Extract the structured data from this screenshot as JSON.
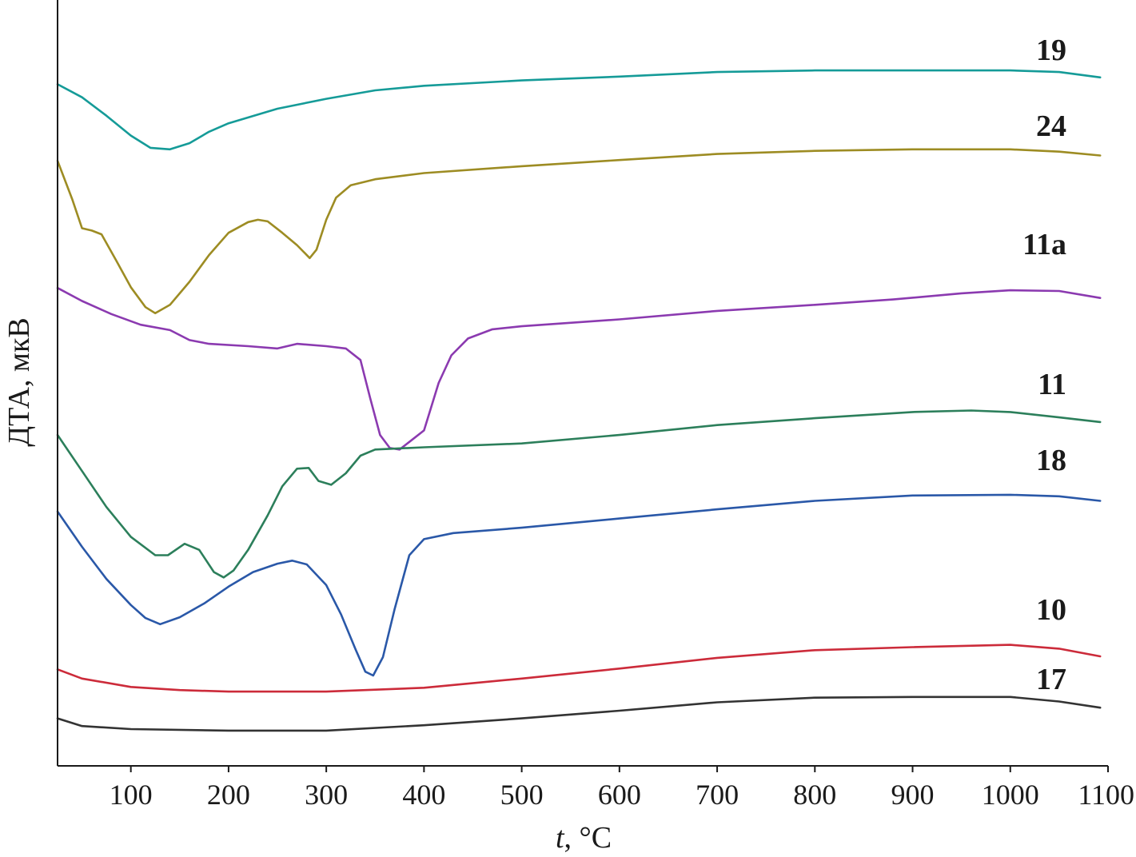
{
  "chart_data": {
    "type": "line",
    "title": "",
    "xlabel_italic": "t",
    "xlabel_rest": ", °C",
    "ylabel": "ДТА, мкВ",
    "xlim": [
      25,
      1100
    ],
    "ylim": [
      0,
      100
    ],
    "x_ticks": [
      100,
      200,
      300,
      400,
      500,
      600,
      700,
      800,
      900,
      1000,
      1100
    ],
    "y_ticks_shown": false,
    "grid": false,
    "legend": "labels placed at right end of each curve",
    "series": [
      {
        "name": "19",
        "color": "#159b98",
        "points": [
          [
            25,
            89
          ],
          [
            50,
            87.3
          ],
          [
            75,
            84.9
          ],
          [
            100,
            82.3
          ],
          [
            120,
            80.7
          ],
          [
            140,
            80.5
          ],
          [
            160,
            81.3
          ],
          [
            180,
            82.8
          ],
          [
            200,
            83.9
          ],
          [
            250,
            85.8
          ],
          [
            300,
            87.1
          ],
          [
            350,
            88.2
          ],
          [
            400,
            88.8
          ],
          [
            500,
            89.5
          ],
          [
            600,
            90
          ],
          [
            700,
            90.6
          ],
          [
            800,
            90.8
          ],
          [
            900,
            90.8
          ],
          [
            1000,
            90.8
          ],
          [
            1050,
            90.6
          ],
          [
            1092,
            89.9
          ]
        ]
      },
      {
        "name": "24",
        "color": "#9d8c23",
        "points": [
          [
            25,
            79
          ],
          [
            40,
            74
          ],
          [
            50,
            70.2
          ],
          [
            60,
            69.9
          ],
          [
            70,
            69.4
          ],
          [
            85,
            66
          ],
          [
            100,
            62.5
          ],
          [
            115,
            59.9
          ],
          [
            125,
            59.1
          ],
          [
            140,
            60.2
          ],
          [
            160,
            63.2
          ],
          [
            180,
            66.7
          ],
          [
            200,
            69.6
          ],
          [
            220,
            71
          ],
          [
            230,
            71.3
          ],
          [
            240,
            71.1
          ],
          [
            255,
            69.6
          ],
          [
            270,
            68
          ],
          [
            283,
            66.3
          ],
          [
            290,
            67.4
          ],
          [
            300,
            71.3
          ],
          [
            310,
            74.2
          ],
          [
            325,
            75.8
          ],
          [
            350,
            76.6
          ],
          [
            400,
            77.4
          ],
          [
            500,
            78.3
          ],
          [
            600,
            79.1
          ],
          [
            700,
            79.9
          ],
          [
            800,
            80.3
          ],
          [
            900,
            80.5
          ],
          [
            1000,
            80.5
          ],
          [
            1050,
            80.2
          ],
          [
            1092,
            79.7
          ]
        ]
      },
      {
        "name": "11a",
        "color": "#8b3ab0",
        "points": [
          [
            25,
            62.4
          ],
          [
            50,
            60.7
          ],
          [
            80,
            59
          ],
          [
            110,
            57.6
          ],
          [
            140,
            56.9
          ],
          [
            160,
            55.6
          ],
          [
            180,
            55.1
          ],
          [
            220,
            54.8
          ],
          [
            250,
            54.5
          ],
          [
            270,
            55.1
          ],
          [
            300,
            54.8
          ],
          [
            320,
            54.5
          ],
          [
            335,
            53
          ],
          [
            345,
            48
          ],
          [
            355,
            43.2
          ],
          [
            365,
            41.5
          ],
          [
            375,
            41.3
          ],
          [
            385,
            42.3
          ],
          [
            400,
            43.8
          ],
          [
            415,
            50
          ],
          [
            428,
            53.6
          ],
          [
            445,
            55.8
          ],
          [
            470,
            57
          ],
          [
            500,
            57.4
          ],
          [
            600,
            58.3
          ],
          [
            700,
            59.4
          ],
          [
            800,
            60.2
          ],
          [
            880,
            60.9
          ],
          [
            950,
            61.7
          ],
          [
            1000,
            62.1
          ],
          [
            1050,
            62
          ],
          [
            1092,
            61.1
          ]
        ]
      },
      {
        "name": "11",
        "color": "#2c7f5b",
        "points": [
          [
            25,
            43.2
          ],
          [
            50,
            38.5
          ],
          [
            75,
            33.8
          ],
          [
            100,
            29.9
          ],
          [
            125,
            27.5
          ],
          [
            138,
            27.5
          ],
          [
            155,
            29
          ],
          [
            170,
            28.2
          ],
          [
            185,
            25.3
          ],
          [
            195,
            24.6
          ],
          [
            205,
            25.5
          ],
          [
            220,
            28.2
          ],
          [
            240,
            32.7
          ],
          [
            255,
            36.5
          ],
          [
            270,
            38.8
          ],
          [
            282,
            38.9
          ],
          [
            292,
            37.2
          ],
          [
            305,
            36.7
          ],
          [
            320,
            38.2
          ],
          [
            335,
            40.5
          ],
          [
            350,
            41.3
          ],
          [
            400,
            41.6
          ],
          [
            500,
            42.1
          ],
          [
            600,
            43.2
          ],
          [
            700,
            44.5
          ],
          [
            800,
            45.4
          ],
          [
            900,
            46.2
          ],
          [
            960,
            46.4
          ],
          [
            1000,
            46.2
          ],
          [
            1050,
            45.5
          ],
          [
            1092,
            44.9
          ]
        ]
      },
      {
        "name": "18",
        "color": "#2a58a8",
        "points": [
          [
            25,
            33.2
          ],
          [
            50,
            28.6
          ],
          [
            75,
            24.4
          ],
          [
            100,
            21
          ],
          [
            115,
            19.3
          ],
          [
            130,
            18.5
          ],
          [
            150,
            19.4
          ],
          [
            175,
            21.2
          ],
          [
            200,
            23.4
          ],
          [
            225,
            25.3
          ],
          [
            250,
            26.4
          ],
          [
            265,
            26.8
          ],
          [
            280,
            26.3
          ],
          [
            300,
            23.6
          ],
          [
            315,
            19.8
          ],
          [
            330,
            15.2
          ],
          [
            340,
            12.3
          ],
          [
            348,
            11.8
          ],
          [
            358,
            14.2
          ],
          [
            370,
            20.5
          ],
          [
            385,
            27.5
          ],
          [
            400,
            29.6
          ],
          [
            430,
            30.4
          ],
          [
            500,
            31.1
          ],
          [
            600,
            32.3
          ],
          [
            700,
            33.5
          ],
          [
            800,
            34.6
          ],
          [
            900,
            35.3
          ],
          [
            1000,
            35.4
          ],
          [
            1050,
            35.2
          ],
          [
            1092,
            34.6
          ]
        ]
      },
      {
        "name": "10",
        "color": "#cc2b3a",
        "points": [
          [
            25,
            12.6
          ],
          [
            50,
            11.4
          ],
          [
            100,
            10.3
          ],
          [
            150,
            9.9
          ],
          [
            200,
            9.7
          ],
          [
            300,
            9.7
          ],
          [
            400,
            10.2
          ],
          [
            500,
            11.4
          ],
          [
            600,
            12.7
          ],
          [
            700,
            14.1
          ],
          [
            800,
            15.1
          ],
          [
            900,
            15.5
          ],
          [
            1000,
            15.8
          ],
          [
            1050,
            15.3
          ],
          [
            1092,
            14.3
          ]
        ]
      },
      {
        "name": "17",
        "color": "#333333",
        "points": [
          [
            25,
            6.2
          ],
          [
            50,
            5.2
          ],
          [
            100,
            4.8
          ],
          [
            200,
            4.6
          ],
          [
            300,
            4.6
          ],
          [
            400,
            5.3
          ],
          [
            500,
            6.2
          ],
          [
            600,
            7.2
          ],
          [
            700,
            8.3
          ],
          [
            800,
            8.9
          ],
          [
            900,
            9
          ],
          [
            1000,
            9
          ],
          [
            1050,
            8.4
          ],
          [
            1092,
            7.6
          ]
        ]
      }
    ]
  }
}
